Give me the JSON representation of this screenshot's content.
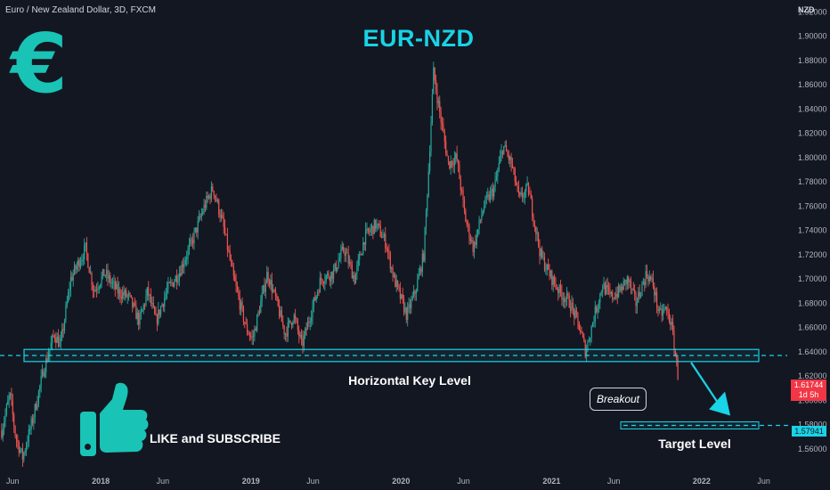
{
  "header": {
    "symbol_title": "Euro / New Zealand Dollar, 3D, FXCM",
    "currency_unit": "NZD"
  },
  "annotations": {
    "heading": "EUR-NZD",
    "logo_glyph": "€",
    "call_to_action": "LIKE and SUBSCRIBE",
    "key_level_label": "Horizontal Key Level",
    "target_level_label": "Target Level",
    "breakout_label": "Breakout"
  },
  "price_scale": {
    "current_price": "1.61744",
    "countdown": "1d 5h",
    "target_price": "1.57941"
  },
  "colors": {
    "background": "#131722",
    "bull": "#26a69a",
    "bear": "#ef5350",
    "accent": "#19d3e6",
    "logo": "#19c3b5"
  },
  "icons": {
    "thumb": "thumbs-up-icon",
    "arrow": "arrow-down-right-icon"
  },
  "chart_data": {
    "type": "candlestick",
    "ylim": [
      1.546,
      1.924
    ],
    "y_ticks": [
      1.56,
      1.58,
      1.6,
      1.62,
      1.64,
      1.66,
      1.68,
      1.7,
      1.72,
      1.74,
      1.76,
      1.78,
      1.8,
      1.82,
      1.84,
      1.86,
      1.88,
      1.9,
      1.92
    ],
    "y_tick_labels": [
      "1.56000",
      "1.58000",
      "1.60000",
      "1.62000",
      "1.64000",
      "1.66000",
      "1.68000",
      "1.70000",
      "1.72000",
      "1.74000",
      "1.76000",
      "1.78000",
      "1.80000",
      "1.82000",
      "1.84000",
      "1.86000",
      "1.88000",
      "1.90000",
      "1.92000"
    ],
    "xlim": [
      "2017-05-01",
      "2022-07-15"
    ],
    "x_ticks": [
      {
        "date": "2017-06-01",
        "label": "Jun"
      },
      {
        "date": "2018-01-01",
        "label": "2018"
      },
      {
        "date": "2018-06-01",
        "label": "Jun"
      },
      {
        "date": "2019-01-01",
        "label": "2019"
      },
      {
        "date": "2019-06-01",
        "label": "Jun"
      },
      {
        "date": "2020-01-01",
        "label": "2020"
      },
      {
        "date": "2020-06-01",
        "label": "Jun"
      },
      {
        "date": "2021-01-01",
        "label": "2021"
      },
      {
        "date": "2021-06-01",
        "label": "Jun"
      },
      {
        "date": "2022-01-01",
        "label": "2022"
      },
      {
        "date": "2022-06-01",
        "label": "Jun"
      }
    ],
    "price_path": [
      [
        "2017-05-05",
        1.575
      ],
      [
        "2017-05-25",
        1.605
      ],
      [
        "2017-06-08",
        1.57
      ],
      [
        "2017-06-25",
        1.553
      ],
      [
        "2017-07-20",
        1.585
      ],
      [
        "2017-08-15",
        1.625
      ],
      [
        "2017-09-10",
        1.655
      ],
      [
        "2017-09-25",
        1.645
      ],
      [
        "2017-10-20",
        1.7
      ],
      [
        "2017-11-10",
        1.715
      ],
      [
        "2017-11-25",
        1.725
      ],
      [
        "2017-12-15",
        1.69
      ],
      [
        "2018-01-10",
        1.705
      ],
      [
        "2018-02-10",
        1.69
      ],
      [
        "2018-03-10",
        1.685
      ],
      [
        "2018-04-05",
        1.665
      ],
      [
        "2018-04-25",
        1.69
      ],
      [
        "2018-05-15",
        1.665
      ],
      [
        "2018-06-10",
        1.69
      ],
      [
        "2018-07-10",
        1.705
      ],
      [
        "2018-08-10",
        1.73
      ],
      [
        "2018-09-10",
        1.76
      ],
      [
        "2018-10-01",
        1.775
      ],
      [
        "2018-10-25",
        1.745
      ],
      [
        "2018-11-20",
        1.7
      ],
      [
        "2018-12-20",
        1.66
      ],
      [
        "2019-01-05",
        1.65
      ],
      [
        "2019-02-10",
        1.705
      ],
      [
        "2019-03-05",
        1.68
      ],
      [
        "2019-03-25",
        1.655
      ],
      [
        "2019-04-15",
        1.67
      ],
      [
        "2019-05-05",
        1.645
      ],
      [
        "2019-05-25",
        1.67
      ],
      [
        "2019-06-20",
        1.7
      ],
      [
        "2019-07-20",
        1.705
      ],
      [
        "2019-08-15",
        1.725
      ],
      [
        "2019-09-10",
        1.7
      ],
      [
        "2019-10-05",
        1.735
      ],
      [
        "2019-11-01",
        1.745
      ],
      [
        "2019-11-25",
        1.73
      ],
      [
        "2019-12-15",
        1.7
      ],
      [
        "2020-01-15",
        1.67
      ],
      [
        "2020-02-05",
        1.69
      ],
      [
        "2020-02-25",
        1.72
      ],
      [
        "2020-03-08",
        1.79
      ],
      [
        "2020-03-20",
        1.87
      ],
      [
        "2020-04-05",
        1.835
      ],
      [
        "2020-04-25",
        1.795
      ],
      [
        "2020-05-15",
        1.8
      ],
      [
        "2020-06-05",
        1.75
      ],
      [
        "2020-06-25",
        1.725
      ],
      [
        "2020-07-20",
        1.76
      ],
      [
        "2020-08-15",
        1.775
      ],
      [
        "2020-09-05",
        1.81
      ],
      [
        "2020-09-25",
        1.795
      ],
      [
        "2020-10-15",
        1.765
      ],
      [
        "2020-11-05",
        1.775
      ],
      [
        "2020-12-05",
        1.72
      ],
      [
        "2020-12-25",
        1.705
      ],
      [
        "2021-01-20",
        1.69
      ],
      [
        "2021-02-15",
        1.68
      ],
      [
        "2021-03-10",
        1.66
      ],
      [
        "2021-03-25",
        1.64
      ],
      [
        "2021-04-15",
        1.67
      ],
      [
        "2021-05-05",
        1.695
      ],
      [
        "2021-05-25",
        1.685
      ],
      [
        "2021-06-15",
        1.69
      ],
      [
        "2021-07-05",
        1.7
      ],
      [
        "2021-07-25",
        1.68
      ],
      [
        "2021-08-20",
        1.705
      ],
      [
        "2021-09-05",
        1.695
      ],
      [
        "2021-09-20",
        1.67
      ],
      [
        "2021-10-05",
        1.675
      ],
      [
        "2021-10-18",
        1.665
      ],
      [
        "2021-10-28",
        1.64
      ],
      [
        "2021-11-06",
        1.6174
      ]
    ],
    "key_level_zone": [
      1.632,
      1.642
    ],
    "key_level_line": 1.637,
    "target_level": 1.5794,
    "current_price": 1.61744,
    "breakout_date": "2021-11-06",
    "grid": false
  }
}
